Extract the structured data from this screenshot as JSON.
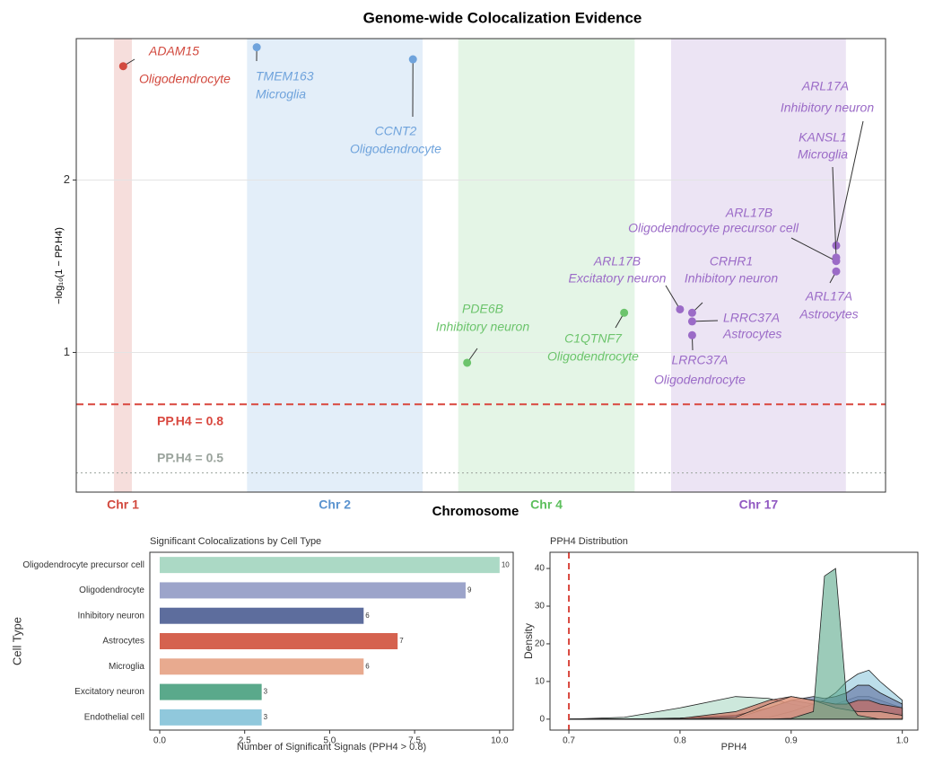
{
  "chart_data": [
    {
      "type": "scatter",
      "title": "Genome-wide Colocalization Evidence",
      "x_label": "Chromosome",
      "y_label": "−log₁₀(1 − PP.H4)",
      "xlim": [
        0,
        100
      ],
      "ylim": [
        0.19,
        2.82
      ],
      "yticks": [
        1,
        2
      ],
      "grid": true,
      "bands": [
        {
          "label": "Chr 1",
          "range": [
            4.66,
            6.87
          ],
          "color": "#d24a3f",
          "fill": "#f6dedc"
        },
        {
          "label": "Chr 2",
          "range": [
            21.1,
            42.8
          ],
          "color": "#5a93cf",
          "fill": "#e3eef9"
        },
        {
          "label": "Chr 4",
          "range": [
            47.2,
            69.0
          ],
          "color": "#5cbf5c",
          "fill": "#e4f5e6"
        },
        {
          "label": "Chr 17",
          "range": [
            73.5,
            95.1
          ],
          "color": "#9159c2",
          "fill": "#ece4f4"
        }
      ],
      "hlines": [
        {
          "label": "PP.H4 = 0.8",
          "value": 0.699,
          "color": "#d9473e",
          "style": "dashed"
        },
        {
          "label": "PP.H4 = 0.5",
          "value": 0.301,
          "color": "#9aa39c",
          "style": "dotted"
        }
      ],
      "x": [
        5.8,
        22.3,
        41.6,
        48.3,
        67.7,
        74.6,
        76.1,
        76.1,
        76.1,
        93.9,
        93.9,
        93.9,
        93.9
      ],
      "values": [
        2.66,
        2.77,
        2.7,
        0.94,
        1.23,
        1.25,
        1.23,
        1.18,
        1.1,
        1.62,
        1.55,
        1.53,
        1.47
      ],
      "genes": [
        "ADAM15",
        "TMEM163",
        "CCNT2",
        "PDE6B",
        "C1QTNF7",
        "ARL17B",
        "CRHR1",
        "LRRC37A",
        "LRRC37A",
        "ARL17A",
        "KANSL1",
        "ARL17B",
        "ARL17A"
      ],
      "cell_types": [
        "Oligodendrocyte",
        "Microglia",
        "Oligodendrocyte",
        "Inhibitory neuron",
        "Oligodendrocyte",
        "Excitatory neuron",
        "Inhibitory neuron",
        "Astrocytes",
        "Oligodendrocyte",
        "Inhibitory neuron",
        "Microglia",
        "Oligodendrocyte precursor cell",
        "Astrocytes"
      ],
      "colors": [
        "#d24a3f",
        "#6fa3dc",
        "#6fa3dc",
        "#6cc46c",
        "#6cc46c",
        "#9b6bc7",
        "#9b6bc7",
        "#9b6bc7",
        "#9b6bc7",
        "#9b6bc7",
        "#9b6bc7",
        "#9b6bc7",
        "#9b6bc7"
      ]
    },
    {
      "type": "hbar",
      "title": "Significant Colocalizations by Cell Type",
      "x_label": "Number of Significant Signals (PPH4 > 0.8)",
      "y_label": "Cell Type",
      "categories": [
        "Oligodendrocyte precursor cell",
        "Oligodendrocyte",
        "Inhibitory neuron",
        "Astrocytes",
        "Microglia",
        "Excitatory neuron",
        "Endothelial cell"
      ],
      "values": [
        10,
        9,
        6,
        7,
        6,
        3,
        3
      ],
      "colors": [
        "#abd9c5",
        "#9ca4ca",
        "#5d6d9d",
        "#d5624f",
        "#e8aa8f",
        "#5aa98b",
        "#90c8dc"
      ],
      "xlim": [
        -0.29,
        10.4
      ],
      "xticks": [
        {
          "value": 0,
          "label": "0.0"
        },
        2.5,
        {
          "value": 5,
          "label": "5.0"
        },
        7.5,
        {
          "value": 10,
          "label": "10.0"
        }
      ]
    },
    {
      "type": "density",
      "title": "PPH4 Distribution",
      "x_label": "PPH4",
      "y_label": "Density",
      "xlim": [
        0.683,
        1.014
      ],
      "ylim": [
        -2.9,
        44.3
      ],
      "xticks": [
        0.7,
        0.8,
        0.9,
        {
          "value": 1,
          "label": "1.0"
        }
      ],
      "yticks": [
        0,
        10,
        20,
        30,
        40
      ],
      "vline": {
        "value": 0.7,
        "color": "#d9473e"
      },
      "x": [
        0.7,
        0.75,
        0.8,
        0.85,
        0.88,
        0.9,
        0.92,
        0.93,
        0.94,
        0.95,
        0.96,
        0.97,
        0.98,
        1.0
      ],
      "series": [
        {
          "color": "#abd9c5",
          "values": [
            0,
            0.5,
            3,
            6,
            5.5,
            4,
            3,
            2.5,
            2,
            2,
            2,
            2,
            2,
            1.5
          ]
        },
        {
          "color": "#9ca4ca",
          "values": [
            0,
            0,
            0.3,
            1,
            3,
            5,
            4,
            3.5,
            4,
            5,
            6,
            6,
            5,
            3
          ]
        },
        {
          "color": "#90c8dc",
          "values": [
            0,
            0,
            0,
            0,
            0.5,
            2,
            4,
            5,
            7,
            10,
            12,
            13,
            10,
            5
          ]
        },
        {
          "color": "#5d6d9d",
          "values": [
            0,
            0,
            0,
            0.2,
            3,
            5,
            6,
            5.5,
            6,
            7,
            9,
            9,
            7,
            4
          ]
        },
        {
          "color": "#d5624f",
          "values": [
            0,
            0,
            0.2,
            2,
            5,
            6,
            5,
            4.5,
            4,
            4,
            5,
            5,
            4,
            3
          ]
        },
        {
          "color": "#e8aa8f",
          "values": [
            0,
            0,
            0,
            0.5,
            4,
            6,
            5,
            4,
            3,
            2.5,
            2,
            2,
            2,
            1
          ]
        },
        {
          "color": "#5aa98b",
          "values": [
            0,
            0,
            0,
            0,
            0,
            0.2,
            2,
            38,
            40,
            5,
            1,
            0.5,
            0,
            0
          ]
        }
      ]
    }
  ]
}
